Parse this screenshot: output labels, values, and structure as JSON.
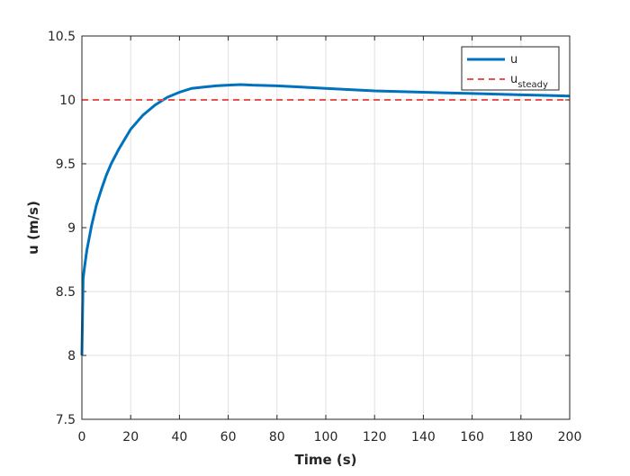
{
  "chart_data": {
    "type": "line",
    "xlabel": "Time (s)",
    "ylabel": "u (m/s)",
    "xlim": [
      0,
      200
    ],
    "xticks": [
      0,
      20,
      40,
      60,
      80,
      100,
      120,
      140,
      160,
      180,
      200
    ],
    "ylim": [
      7.5,
      10.5
    ],
    "yticks": [
      7.5,
      8,
      8.5,
      9,
      9.5,
      10,
      10.5
    ],
    "grid": true,
    "legend": "top-right",
    "series": [
      {
        "name": "u",
        "color": "#0072bd",
        "style": "solid",
        "x": [
          0,
          0.5,
          1,
          2,
          4,
          6,
          8,
          10,
          12,
          15,
          20,
          25,
          30,
          35,
          40,
          45,
          50,
          55,
          60,
          65,
          70,
          80,
          90,
          100,
          110,
          120,
          130,
          140,
          150,
          160,
          170,
          180,
          190,
          200
        ],
        "values": [
          8.0,
          8.6,
          8.68,
          8.82,
          9.02,
          9.18,
          9.3,
          9.41,
          9.5,
          9.61,
          9.77,
          9.88,
          9.96,
          10.02,
          10.06,
          10.09,
          10.1,
          10.11,
          10.115,
          10.12,
          10.115,
          10.11,
          10.1,
          10.09,
          10.08,
          10.07,
          10.065,
          10.06,
          10.055,
          10.05,
          10.045,
          10.04,
          10.035,
          10.03
        ]
      },
      {
        "name": "u",
        "name_subscript": "steady",
        "color": "#e8534f",
        "style": "dashed",
        "x": [
          0,
          200
        ],
        "values": [
          10,
          10
        ]
      }
    ]
  }
}
